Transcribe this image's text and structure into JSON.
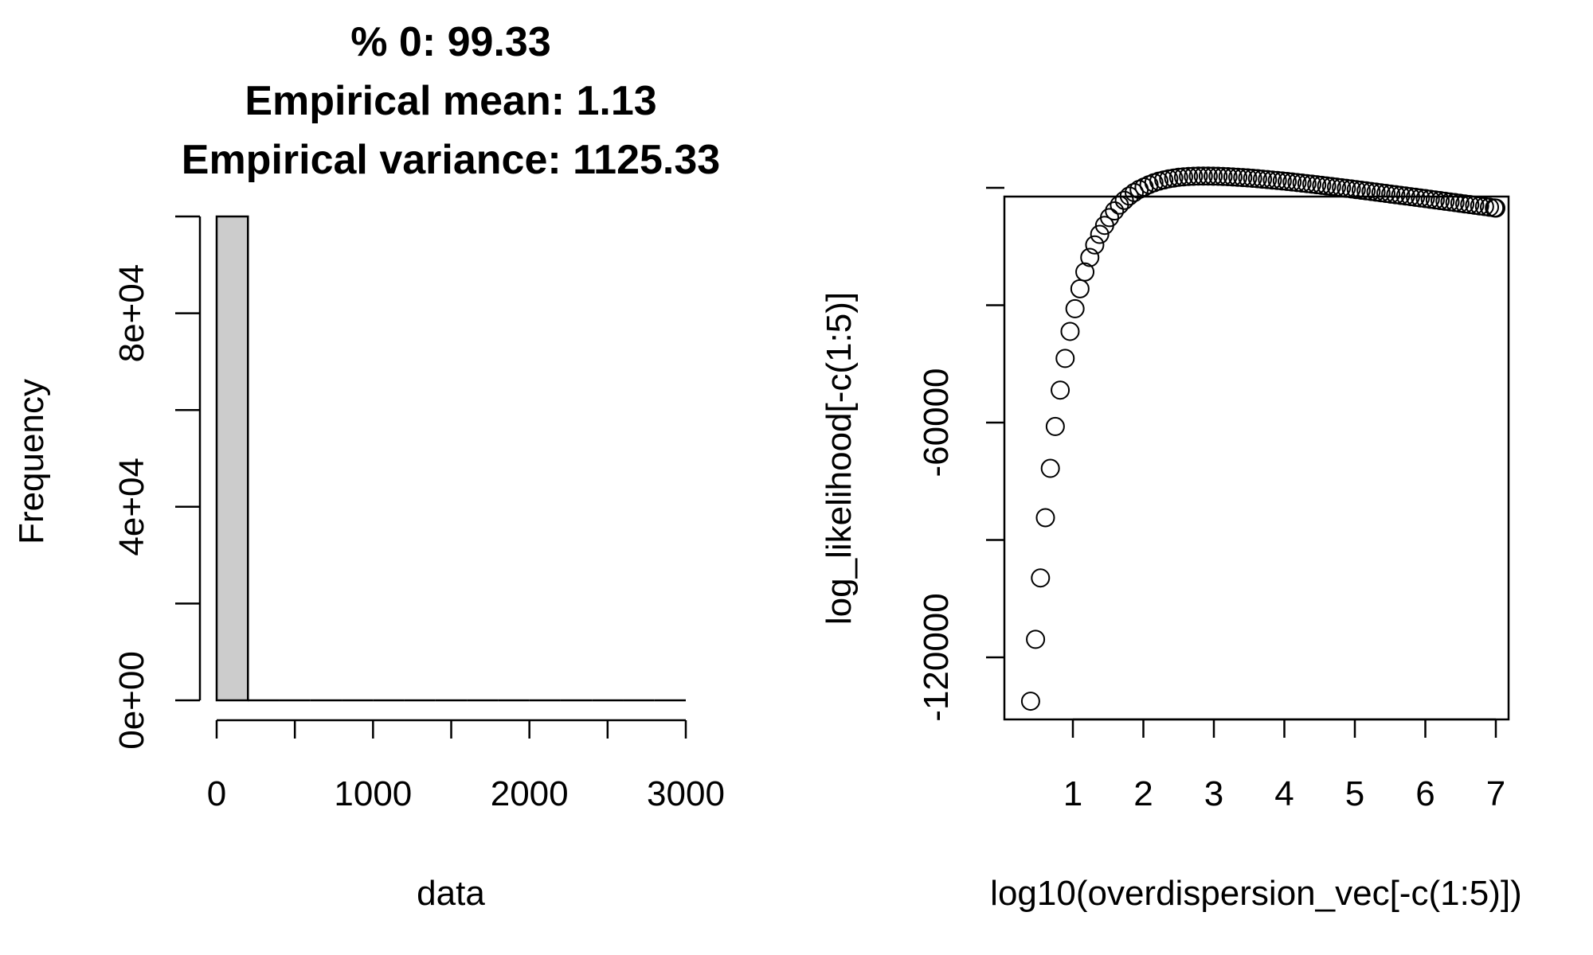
{
  "chart_data": [
    {
      "type": "bar",
      "subtype": "histogram",
      "title_lines": [
        "% 0: 99.33",
        "Empirical mean: 1.13",
        "Empirical variance: 1125.33"
      ],
      "xlabel": "data",
      "ylabel": "Frequency",
      "x_range": [
        0,
        3000
      ],
      "x_ticks": [
        "0",
        "1000",
        "2000",
        "3000"
      ],
      "x_minor_tick_values": [
        0,
        500,
        1000,
        1500,
        2000,
        2500,
        3000
      ],
      "y_ticks": [
        "0e+00",
        "4e+04",
        "8e+04"
      ],
      "y_minor_tick_values": [
        0,
        20000,
        40000,
        60000,
        80000,
        100000
      ],
      "ylim": [
        0,
        100000
      ],
      "bin_width": 200,
      "bins": [
        {
          "start": 0,
          "end": 200,
          "count": 100000
        },
        {
          "start": 200,
          "end": 400,
          "count": 0
        },
        {
          "start": 400,
          "end": 600,
          "count": 0
        },
        {
          "start": 600,
          "end": 800,
          "count": 0
        },
        {
          "start": 800,
          "end": 1000,
          "count": 0
        },
        {
          "start": 1000,
          "end": 1200,
          "count": 0
        },
        {
          "start": 1200,
          "end": 1400,
          "count": 0
        },
        {
          "start": 1400,
          "end": 1600,
          "count": 0
        },
        {
          "start": 1600,
          "end": 1800,
          "count": 0
        },
        {
          "start": 1800,
          "end": 2000,
          "count": 0
        },
        {
          "start": 2000,
          "end": 2200,
          "count": 0
        },
        {
          "start": 2200,
          "end": 2400,
          "count": 0
        },
        {
          "start": 2400,
          "end": 2600,
          "count": 0
        },
        {
          "start": 2600,
          "end": 2800,
          "count": 0
        },
        {
          "start": 2800,
          "end": 3000,
          "count": 0
        }
      ],
      "bar_color": "#cccccc",
      "grid": false
    },
    {
      "type": "scatter",
      "xlabel": "log10(overdispersion_vec[-c(1:5)])",
      "ylabel": "log_likelihood[-c(1:5)]",
      "x_ticks": [
        "1",
        "2",
        "3",
        "4",
        "5",
        "6",
        "7"
      ],
      "x_tick_values": [
        1,
        2,
        3,
        4,
        5,
        6,
        7
      ],
      "y_ticks": [
        "-120000",
        "-60000"
      ],
      "y_tick_values": [
        -120000,
        -60000
      ],
      "y_minor_tick_values": [
        -120000,
        -90000,
        -60000,
        -30000,
        0
      ],
      "xlim": [
        0.3,
        7.25
      ],
      "ylim": [
        -135000,
        20000
      ],
      "marker": "open-circle",
      "grid": false,
      "points": {
        "x": [
          0.4,
          0.47,
          0.54,
          0.61,
          0.68,
          0.75,
          0.82,
          0.89,
          0.96,
          1.03,
          1.1,
          1.17,
          1.24,
          1.31,
          1.38,
          1.45,
          1.52,
          1.59,
          1.66,
          1.73,
          1.8,
          1.87,
          1.94,
          2.01,
          2.08,
          2.15,
          2.22,
          2.29,
          2.36,
          2.43,
          2.5,
          2.57,
          2.64,
          2.71,
          2.78,
          2.85,
          2.92,
          2.99,
          3.06,
          3.13,
          3.2,
          3.27,
          3.34,
          3.41,
          3.48,
          3.55,
          3.62,
          3.69,
          3.76,
          3.83,
          3.9,
          3.97,
          4.04,
          4.11,
          4.18,
          4.25,
          4.32,
          4.39,
          4.46,
          4.53,
          4.6,
          4.67,
          4.74,
          4.81,
          4.88,
          4.95,
          5.02,
          5.09,
          5.16,
          5.23,
          5.3,
          5.37,
          5.44,
          5.51,
          5.58,
          5.65,
          5.72,
          5.79,
          5.86,
          5.93,
          6.0,
          6.07,
          6.14,
          6.21,
          6.28,
          6.35,
          6.42,
          6.49,
          6.56,
          6.63,
          6.7,
          6.77,
          6.84,
          6.91,
          6.98,
          7.0
        ],
        "y": [
          -131200,
          -115400,
          -99700,
          -84300,
          -71700,
          -61000,
          -51700,
          -43600,
          -36700,
          -30900,
          -25800,
          -21500,
          -17800,
          -14600,
          -11900,
          -9600,
          -7600,
          -5900,
          -4400,
          -3200,
          -2100,
          -1200,
          -400,
          200,
          800,
          1300,
          1700,
          2000,
          2300,
          2500,
          2700,
          2800,
          2900,
          2950,
          3000,
          3000,
          3000,
          2980,
          2950,
          2900,
          2850,
          2780,
          2700,
          2620,
          2530,
          2430,
          2330,
          2220,
          2110,
          1990,
          1870,
          1750,
          1620,
          1490,
          1360,
          1220,
          1080,
          940,
          790,
          640,
          490,
          340,
          180,
          30,
          -130,
          -290,
          -450,
          -610,
          -770,
          -930,
          -1090,
          -1260,
          -1420,
          -1590,
          -1750,
          -1920,
          -2080,
          -2250,
          -2420,
          -2590,
          -2750,
          -2920,
          -3090,
          -3260,
          -3430,
          -3600,
          -3770,
          -3940,
          -4110,
          -4280,
          -4450,
          -4620,
          -4790,
          -4960,
          -5130,
          -5180
        ]
      }
    }
  ]
}
